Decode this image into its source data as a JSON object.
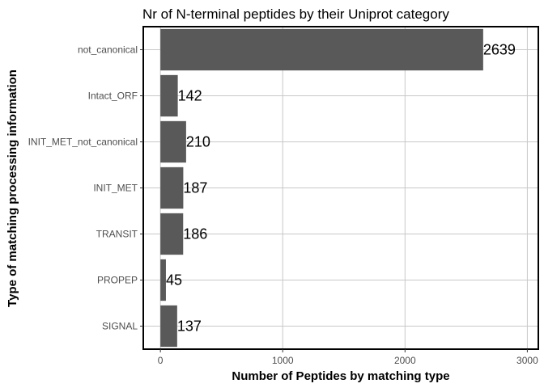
{
  "chart_data": {
    "type": "bar",
    "orientation": "horizontal",
    "title": "Nr of N-terminal peptides by their Uniprot category",
    "xlabel": "Number of Peptides by matching type",
    "ylabel": "Type of matching processing information",
    "categories": [
      "not_canonical",
      "Intact_ORF",
      "INIT_MET_not_canonical",
      "INIT_MET",
      "TRANSIT",
      "PROPEP",
      "SIGNAL"
    ],
    "values": [
      2639,
      142,
      210,
      187,
      186,
      45,
      137
    ],
    "data_labels": [
      "2639",
      "142",
      "210",
      "187",
      "186",
      "45",
      "137"
    ],
    "xlim": [
      -140,
      3090
    ],
    "xticks": [
      0,
      1000,
      2000,
      3000
    ],
    "xtick_labels": [
      "0",
      "1000",
      "2000",
      "3000"
    ],
    "grid": true,
    "bar_color": "#595959",
    "panel_border_color": "#000000",
    "grid_color": "#c8c8c8"
  }
}
